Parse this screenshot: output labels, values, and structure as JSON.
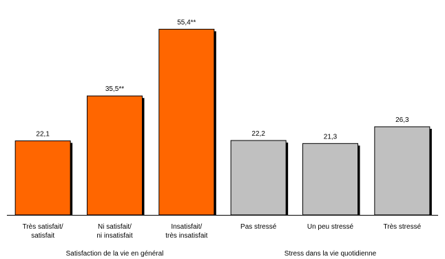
{
  "chart_data": {
    "type": "bar",
    "title": "",
    "xlabel": "",
    "ylabel": "",
    "ylim": [
      0,
      60
    ],
    "grid": false,
    "legend": "none",
    "categories": [
      [
        "Très satisfait/",
        "satisfait"
      ],
      [
        "Ni satisfait/",
        "ni insatisfait"
      ],
      [
        "Insatisfait/",
        "très insatisfait"
      ],
      [
        "Pas stressé"
      ],
      [
        "Un peu stressé"
      ],
      [
        "Très stressé"
      ]
    ],
    "values": [
      22.1,
      35.5,
      55.4,
      22.2,
      21.3,
      26.3
    ],
    "data_labels": [
      "22,1",
      "35,5**",
      "55,4**",
      "22,2",
      "21,3",
      "26,3"
    ],
    "bar_colors": [
      "#ff6600",
      "#ff6600",
      "#ff6600",
      "#c0c0c0",
      "#c0c0c0",
      "#c0c0c0"
    ],
    "groups": [
      {
        "label": "Satisfaction de la vie en général",
        "categories": [
          0,
          1,
          2
        ]
      },
      {
        "label": "Stress dans la vie quotidienne",
        "categories": [
          3,
          4,
          5
        ]
      }
    ]
  }
}
